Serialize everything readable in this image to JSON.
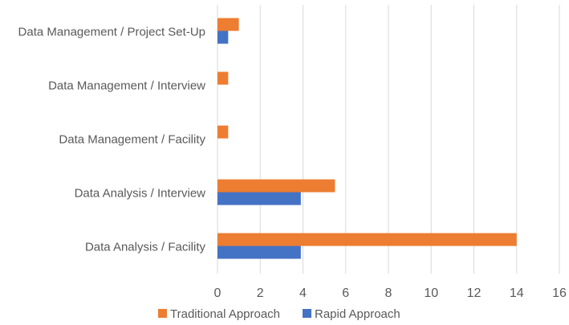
{
  "chart_data": {
    "type": "bar",
    "orientation": "horizontal",
    "categories": [
      "Data Management / Project Set-Up",
      "Data Management / Interview",
      "Data Management / Facility",
      "Data Analysis / Interview",
      "Data Analysis / Facility"
    ],
    "series": [
      {
        "name": "Traditional Approach",
        "color": "#ed7d31",
        "values": [
          1,
          0.5,
          0.5,
          5.5,
          14
        ]
      },
      {
        "name": "Rapid Approach",
        "color": "#4472c4",
        "values": [
          0.5,
          0,
          0,
          3.9,
          3.9
        ]
      }
    ],
    "xlim": [
      0,
      16
    ],
    "xticks": [
      0,
      2,
      4,
      6,
      8,
      10,
      12,
      14,
      16
    ],
    "grid": true,
    "legend_position": "bottom",
    "title": "",
    "xlabel": "",
    "ylabel": ""
  }
}
